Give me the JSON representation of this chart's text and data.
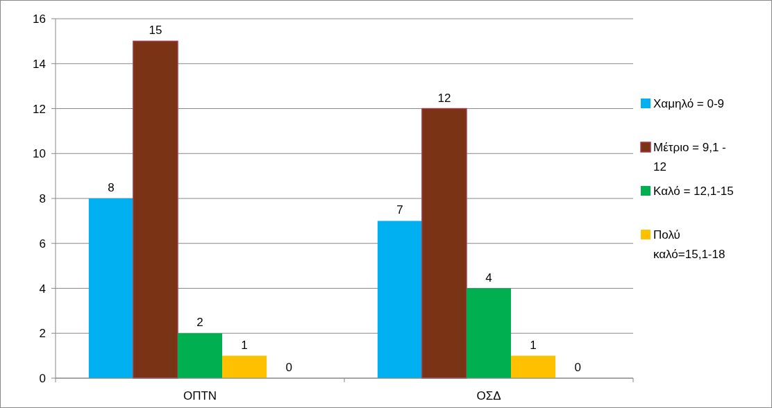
{
  "chart_data": {
    "type": "bar",
    "categories": [
      "ΟΠΤΝ",
      "ΟΣΔ"
    ],
    "series": [
      {
        "name": "Χαμηλό = 0-9",
        "color": "#00b0f0",
        "values": [
          8,
          7
        ]
      },
      {
        "name": "Μέτριο = 9,1 - 12",
        "color": "#7b3316",
        "values": [
          15,
          12
        ]
      },
      {
        "name": "Καλό = 12,1-15",
        "color": "#00b050",
        "values": [
          2,
          4
        ]
      },
      {
        "name": "Πολύ καλό=15,1-18",
        "color": "#ffc000",
        "values": [
          1,
          1
        ]
      }
    ],
    "annotations": [
      "0",
      "0"
    ],
    "ylim": [
      0,
      16
    ],
    "yticks": [
      0,
      2,
      4,
      6,
      8,
      10,
      12,
      14,
      16
    ],
    "grid": "y",
    "legend": "right",
    "data_labels": true
  }
}
